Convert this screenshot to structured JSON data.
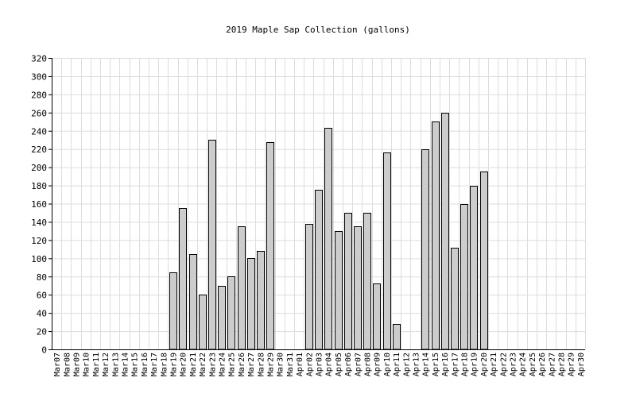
{
  "chart_data": {
    "type": "bar",
    "title": "2019 Maple Sap Collection (gallons)",
    "xlabel": "",
    "ylabel": "",
    "ylim": [
      0,
      320
    ],
    "yticks": [
      0,
      20,
      40,
      60,
      80,
      100,
      120,
      140,
      160,
      180,
      200,
      220,
      240,
      260,
      280,
      300,
      320
    ],
    "grid": true,
    "legend": "none",
    "categories": [
      "Mar07",
      "Mar08",
      "Mar09",
      "Mar10",
      "Mar11",
      "Mar12",
      "Mar13",
      "Mar14",
      "Mar15",
      "Mar16",
      "Mar17",
      "Mar18",
      "Mar19",
      "Mar20",
      "Mar21",
      "Mar22",
      "Mar23",
      "Mar24",
      "Mar25",
      "Mar26",
      "Mar27",
      "Mar28",
      "Mar29",
      "Mar30",
      "Mar31",
      "Apr01",
      "Apr02",
      "Apr03",
      "Apr04",
      "Apr05",
      "Apr06",
      "Apr07",
      "Apr08",
      "Apr09",
      "Apr10",
      "Apr11",
      "Apr12",
      "Apr13",
      "Apr14",
      "Apr15",
      "Apr16",
      "Apr17",
      "Apr18",
      "Apr19",
      "Apr20",
      "Apr21",
      "Apr22",
      "Apr23",
      "Apr24",
      "Apr25",
      "Apr26",
      "Apr27",
      "Apr28",
      "Apr29",
      "Apr30"
    ],
    "values": [
      null,
      null,
      null,
      null,
      null,
      null,
      null,
      null,
      null,
      null,
      null,
      null,
      85,
      155,
      105,
      60,
      230,
      70,
      80,
      135,
      100,
      108,
      228,
      null,
      null,
      null,
      138,
      175,
      243,
      130,
      150,
      135,
      150,
      72,
      216,
      28,
      null,
      null,
      220,
      250,
      260,
      112,
      160,
      180,
      195,
      null,
      null,
      null,
      null,
      null,
      null,
      null,
      null,
      null,
      null
    ],
    "colors": {
      "bar_fill": "#cccccc",
      "bar_stroke": "#000000",
      "grid": "#dddddd",
      "axis": "#000000"
    }
  }
}
